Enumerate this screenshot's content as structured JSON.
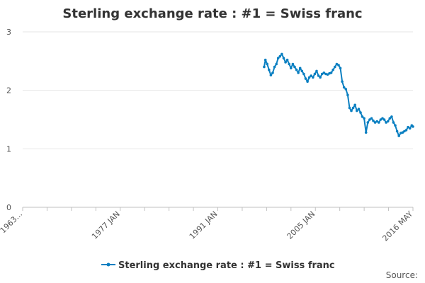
{
  "chart_data": {
    "type": "line",
    "title": "Sterling exchange rate : #1 = Swiss franc",
    "xlabel": "",
    "ylabel": "",
    "ylim": [
      0,
      3
    ],
    "yticks": [
      "0",
      "1",
      "2",
      "3"
    ],
    "xlim": [
      "1963",
      "2016 MAY"
    ],
    "xtick_labels": [
      "1963...",
      "1977 JAN",
      "1991 JAN",
      "2005 JAN",
      "2016 MAY"
    ],
    "grid": true,
    "legend_position": "bottom",
    "series": [
      {
        "name": "Sterling exchange rate : #1 = Swiss franc",
        "color": "#0a7fc1",
        "x": [
          "1996 JAN",
          "1996 MAR",
          "1996 JUN",
          "1996 SEP",
          "1996 DEC",
          "1997 MAR",
          "1997 JUN",
          "1997 SEP",
          "1997 DEC",
          "1998 MAR",
          "1998 JUN",
          "1998 SEP",
          "1998 DEC",
          "1999 MAR",
          "1999 JUN",
          "1999 SEP",
          "1999 DEC",
          "2000 MAR",
          "2000 JUN",
          "2000 SEP",
          "2000 DEC",
          "2001 MAR",
          "2001 JUN",
          "2001 SEP",
          "2001 DEC",
          "2002 MAR",
          "2002 JUN",
          "2002 SEP",
          "2002 DEC",
          "2003 MAR",
          "2003 JUN",
          "2003 SEP",
          "2003 DEC",
          "2004 MAR",
          "2004 JUN",
          "2004 SEP",
          "2004 DEC",
          "2005 MAR",
          "2005 JUN",
          "2005 SEP",
          "2005 DEC",
          "2006 MAR",
          "2006 JUN",
          "2006 SEP",
          "2006 DEC",
          "2007 MAR",
          "2007 JUN",
          "2007 SEP",
          "2007 DEC",
          "2008 MAR",
          "2008 JUN",
          "2008 SEP",
          "2008 DEC",
          "2009 MAR",
          "2009 JUN",
          "2009 SEP",
          "2009 DEC",
          "2010 MAR",
          "2010 JUN",
          "2010 SEP",
          "2010 DEC",
          "2011 MAR",
          "2011 JUN",
          "2011 SEP",
          "2011 DEC",
          "2012 MAR",
          "2012 JUN",
          "2012 SEP",
          "2012 DEC",
          "2013 MAR",
          "2013 JUN",
          "2013 SEP",
          "2013 DEC",
          "2014 MAR",
          "2014 JUN",
          "2014 SEP",
          "2014 DEC",
          "2015 MAR",
          "2015 JUN",
          "2015 SEP",
          "2015 DEC",
          "2016 MAR",
          "2016 MAY"
        ],
        "values": [
          2.4,
          2.52,
          2.45,
          2.35,
          2.26,
          2.3,
          2.4,
          2.45,
          2.55,
          2.58,
          2.62,
          2.55,
          2.48,
          2.52,
          2.45,
          2.38,
          2.45,
          2.4,
          2.35,
          2.3,
          2.38,
          2.33,
          2.28,
          2.2,
          2.15,
          2.22,
          2.25,
          2.22,
          2.28,
          2.33,
          2.25,
          2.22,
          2.28,
          2.3,
          2.28,
          2.27,
          2.29,
          2.3,
          2.35,
          2.4,
          2.45,
          2.43,
          2.38,
          2.15,
          2.05,
          2.02,
          1.92,
          1.7,
          1.65,
          1.7,
          1.75,
          1.65,
          1.68,
          1.62,
          1.55,
          1.52,
          1.28,
          1.45,
          1.5,
          1.52,
          1.48,
          1.45,
          1.47,
          1.45,
          1.5,
          1.52,
          1.5,
          1.45,
          1.47,
          1.52,
          1.55,
          1.45,
          1.4,
          1.3,
          1.22,
          1.27,
          1.28,
          1.3,
          1.32,
          1.37,
          1.35,
          1.4,
          1.38
        ]
      }
    ],
    "source_label": "Source:"
  }
}
